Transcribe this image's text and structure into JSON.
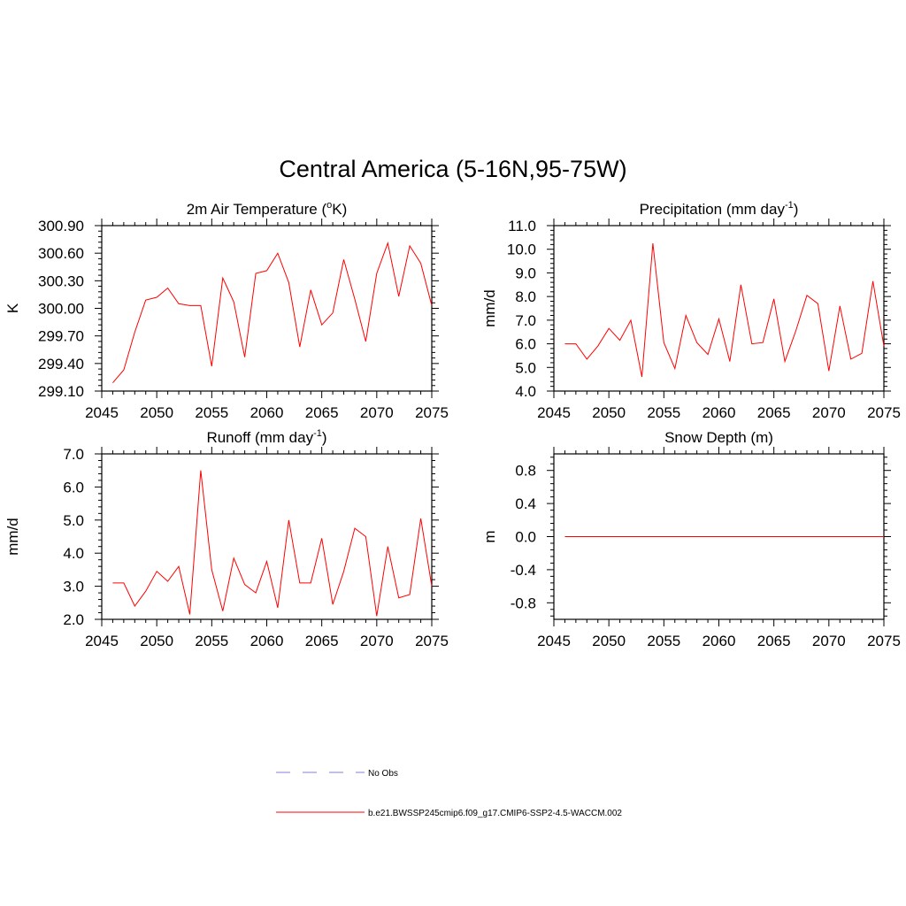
{
  "suptitle": "Central America (5-16N,95-75W)",
  "colors": {
    "model": "#ff0000",
    "obs": "#9999dd",
    "axis": "#000000"
  },
  "legend": {
    "obs_label": "No Obs",
    "model_label": "b.e21.BWSSP245cmip6.f09_g17.CMIP6-SSP2-4.5-WACCM.002"
  },
  "chart_data": [
    {
      "type": "line",
      "title_pre": "2m Air Temperature (",
      "title_sup": "o",
      "title_post": "K)",
      "ylabel": "K",
      "xlim": [
        2045,
        2075
      ],
      "ylim": [
        299.1,
        300.9
      ],
      "xticks": [
        2045,
        2050,
        2055,
        2060,
        2065,
        2070,
        2075
      ],
      "yticks": [
        299.1,
        299.4,
        299.7,
        300.0,
        300.3,
        300.6,
        300.9
      ],
      "ytick_labels": [
        "299.10",
        "299.40",
        "299.70",
        "300.00",
        "300.30",
        "300.60",
        "300.90"
      ],
      "x": [
        2046,
        2047,
        2048,
        2049,
        2050,
        2051,
        2052,
        2053,
        2054,
        2055,
        2056,
        2057,
        2058,
        2059,
        2060,
        2061,
        2062,
        2063,
        2064,
        2065,
        2066,
        2067,
        2068,
        2069,
        2070,
        2071,
        2072,
        2073,
        2074,
        2075
      ],
      "values": [
        299.19,
        299.33,
        299.74,
        300.09,
        300.12,
        300.22,
        300.05,
        300.03,
        300.03,
        299.37,
        300.33,
        300.07,
        299.47,
        300.38,
        300.41,
        300.6,
        300.28,
        299.58,
        300.2,
        299.82,
        299.95,
        300.53,
        300.1,
        299.64,
        300.38,
        300.71,
        300.13,
        300.68,
        300.49,
        300.03
      ]
    },
    {
      "type": "line",
      "title_pre": "Precipitation (mm day",
      "title_sup": "-1",
      "title_post": ")",
      "ylabel": "mm/d",
      "xlim": [
        2045,
        2075
      ],
      "ylim": [
        4.0,
        11.0
      ],
      "xticks": [
        2045,
        2050,
        2055,
        2060,
        2065,
        2070,
        2075
      ],
      "yticks": [
        4,
        5,
        6,
        7,
        8,
        9,
        10,
        11
      ],
      "ytick_labels": [
        "4.0",
        "5.0",
        "6.0",
        "7.0",
        "8.0",
        "9.0",
        "10.0",
        "11.0"
      ],
      "x": [
        2046,
        2047,
        2048,
        2049,
        2050,
        2051,
        2052,
        2053,
        2054,
        2055,
        2056,
        2057,
        2058,
        2059,
        2060,
        2061,
        2062,
        2063,
        2064,
        2065,
        2066,
        2067,
        2068,
        2069,
        2070,
        2071,
        2072,
        2073,
        2074,
        2075
      ],
      "values": [
        6.0,
        6.0,
        5.35,
        5.9,
        6.65,
        6.15,
        7.0,
        4.6,
        10.25,
        6.05,
        4.95,
        7.2,
        6.05,
        5.55,
        7.05,
        5.25,
        8.5,
        6.0,
        6.05,
        7.9,
        5.25,
        6.55,
        8.05,
        7.7,
        4.85,
        7.6,
        5.35,
        5.6,
        8.65,
        5.9
      ]
    },
    {
      "type": "line",
      "title_pre": "Runoff (mm day",
      "title_sup": "-1",
      "title_post": ")",
      "ylabel": "mm/d",
      "xlim": [
        2045,
        2075
      ],
      "ylim": [
        2.0,
        7.0
      ],
      "xticks": [
        2045,
        2050,
        2055,
        2060,
        2065,
        2070,
        2075
      ],
      "yticks": [
        2,
        3,
        4,
        5,
        6,
        7
      ],
      "ytick_labels": [
        "2.0",
        "3.0",
        "4.0",
        "5.0",
        "6.0",
        "7.0"
      ],
      "x": [
        2046,
        2047,
        2048,
        2049,
        2050,
        2051,
        2052,
        2053,
        2054,
        2055,
        2056,
        2057,
        2058,
        2059,
        2060,
        2061,
        2062,
        2063,
        2064,
        2065,
        2066,
        2067,
        2068,
        2069,
        2070,
        2071,
        2072,
        2073,
        2074,
        2075
      ],
      "values": [
        3.1,
        3.1,
        2.4,
        2.85,
        3.45,
        3.15,
        3.6,
        2.15,
        6.5,
        3.5,
        2.25,
        3.85,
        3.05,
        2.8,
        3.75,
        2.35,
        5.0,
        3.1,
        3.1,
        4.45,
        2.45,
        3.45,
        4.75,
        4.5,
        2.1,
        4.2,
        2.65,
        2.75,
        5.05,
        3.0
      ]
    },
    {
      "type": "line",
      "title_pre": "Snow Depth (m)",
      "title_sup": "",
      "title_post": "",
      "ylabel": "m",
      "xlim": [
        2045,
        2075
      ],
      "ylim": [
        -1.0,
        1.0
      ],
      "xticks": [
        2045,
        2050,
        2055,
        2060,
        2065,
        2070,
        2075
      ],
      "yticks": [
        -0.8,
        -0.4,
        0.0,
        0.4,
        0.8
      ],
      "ytick_labels": [
        "-0.8",
        "-0.4",
        "0.0",
        "0.4",
        "0.8"
      ],
      "x": [
        2046,
        2075
      ],
      "values": [
        0.0,
        0.0
      ]
    }
  ]
}
